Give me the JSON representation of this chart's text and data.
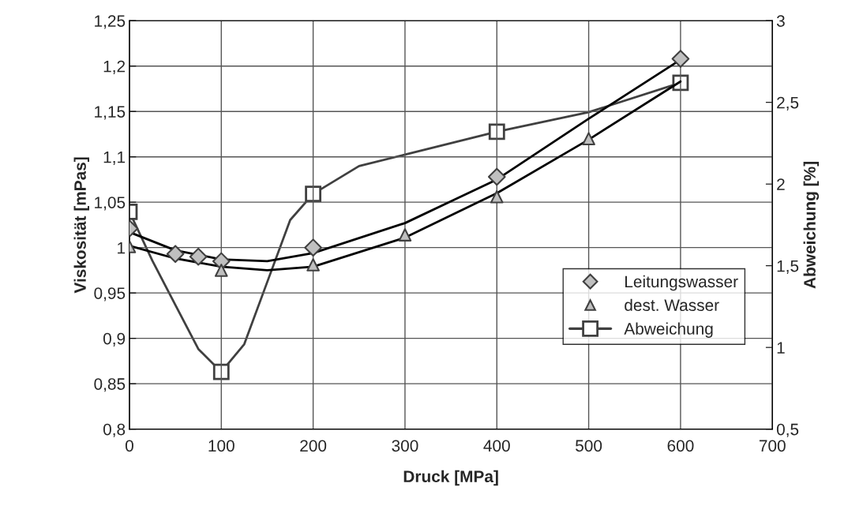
{
  "chart_data": {
    "type": "scatter",
    "xlabel": "Druck [MPa]",
    "ylabel": "Viskosität [mPas]",
    "y2label": "Abweichung [%]",
    "xlim": [
      0,
      700
    ],
    "xticks": [
      0,
      100,
      200,
      300,
      400,
      500,
      600,
      700
    ],
    "ylim": [
      0.8,
      1.25
    ],
    "yticks": [
      {
        "value": 0.8,
        "label": "0,8"
      },
      {
        "value": 0.85,
        "label": "0,85"
      },
      {
        "value": 0.9,
        "label": "0,9"
      },
      {
        "value": 0.95,
        "label": "0,95"
      },
      1,
      {
        "value": 1.05,
        "label": "1,05"
      },
      {
        "value": 1.1,
        "label": "1,1"
      },
      {
        "value": 1.15,
        "label": "1,15"
      },
      {
        "value": 1.2,
        "label": "1,2"
      },
      {
        "value": 1.25,
        "label": "1,25"
      }
    ],
    "y2lim": [
      0.5,
      3
    ],
    "y2ticks": [
      {
        "value": 0.5,
        "label": "0,5"
      },
      1,
      {
        "value": 1.5,
        "label": "1,5"
      },
      2,
      {
        "value": 2.5,
        "label": "2,5"
      },
      3
    ],
    "grid": true,
    "legend": "right",
    "series": [
      {
        "name": "Leitungswasser",
        "marker": "diamond",
        "color": "#c0c0c0",
        "x": [
          0,
          50,
          75,
          100,
          200,
          400,
          600
        ],
        "values": [
          1.021,
          0.993,
          0.99,
          0.985,
          1.0,
          1.078,
          1.208
        ]
      },
      {
        "name": "dest. Wasser",
        "marker": "triangle",
        "color": "#c0c0c0",
        "x": [
          0,
          100,
          200,
          300,
          400,
          500
        ],
        "values": [
          1.001,
          0.975,
          0.981,
          1.014,
          1.056,
          1.12
        ]
      },
      {
        "name": "Abweichung",
        "marker": "square",
        "axis": "y2",
        "color": "#404040",
        "x": [
          0,
          100,
          200,
          400,
          600
        ],
        "values": [
          1.83,
          0.85,
          1.94,
          2.32,
          2.62
        ]
      },
      {
        "type": "line",
        "marker": "none",
        "axis": "y2",
        "color": "#404040",
        "x": [
          0,
          25,
          50,
          75,
          100,
          125,
          150,
          175,
          200,
          250,
          300,
          400,
          500,
          600
        ],
        "values": [
          1.83,
          1.53,
          1.26,
          0.99,
          0.85,
          1.02,
          1.4,
          1.78,
          1.94,
          2.11,
          2.18,
          2.32,
          2.44,
          2.62
        ]
      },
      {
        "type": "line",
        "marker": "none",
        "color": "#000000",
        "x": [
          0,
          50,
          100,
          150,
          200,
          300,
          400,
          500,
          600
        ],
        "values": [
          1.017,
          0.997,
          0.987,
          0.985,
          0.994,
          1.027,
          1.075,
          1.142,
          1.207
        ]
      },
      {
        "type": "line",
        "marker": "none",
        "color": "#000000",
        "x": [
          0,
          50,
          100,
          150,
          200,
          300,
          400,
          500,
          600
        ],
        "values": [
          1.002,
          0.988,
          0.979,
          0.975,
          0.979,
          1.011,
          1.06,
          1.119,
          1.183
        ]
      }
    ]
  }
}
